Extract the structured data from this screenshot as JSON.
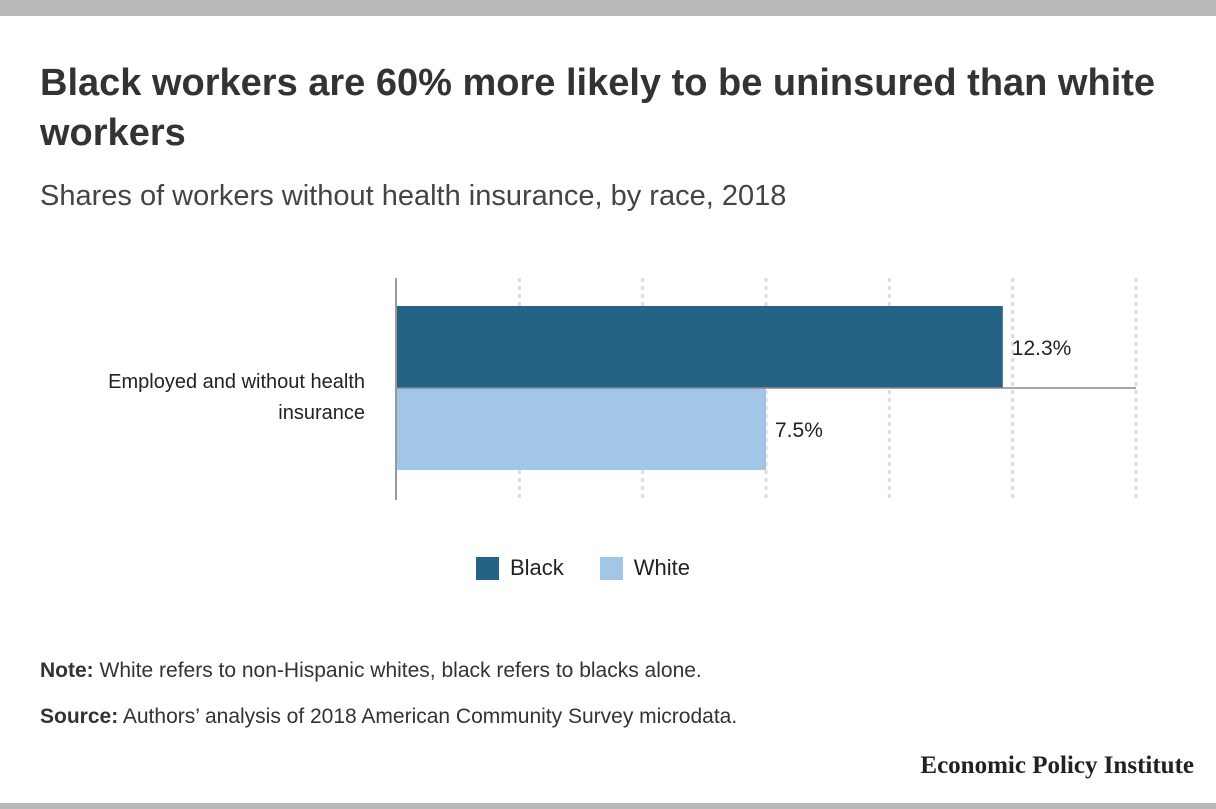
{
  "title": "Black workers are 60% more likely to be uninsured than white workers",
  "subtitle": "Shares of workers without health insurance, by race, 2018",
  "chart_data": {
    "type": "bar",
    "orientation": "horizontal",
    "categories": [
      "Employed and without health insurance"
    ],
    "series": [
      {
        "name": "Black",
        "values": [
          12.3
        ],
        "labels": [
          "12.3%"
        ],
        "color": "#266285"
      },
      {
        "name": "White",
        "values": [
          7.5
        ],
        "labels": [
          "7.5%"
        ],
        "color": "#a1c6e8"
      }
    ],
    "xlim": [
      0,
      15
    ],
    "gridlines": [
      2.5,
      5,
      7.5,
      10,
      12.5,
      15
    ],
    "grid": true,
    "legend_position": "bottom"
  },
  "legend": [
    {
      "label": "Black",
      "color": "#266285"
    },
    {
      "label": "White",
      "color": "#a1c6e8"
    }
  ],
  "note": {
    "label": "Note:",
    "text": " White refers to non-Hispanic whites, black refers to blacks alone."
  },
  "source": {
    "label": "Source:",
    "text": " Authors’ analysis of 2018 American Community Survey microdata."
  },
  "brand": "Economic Policy Institute"
}
